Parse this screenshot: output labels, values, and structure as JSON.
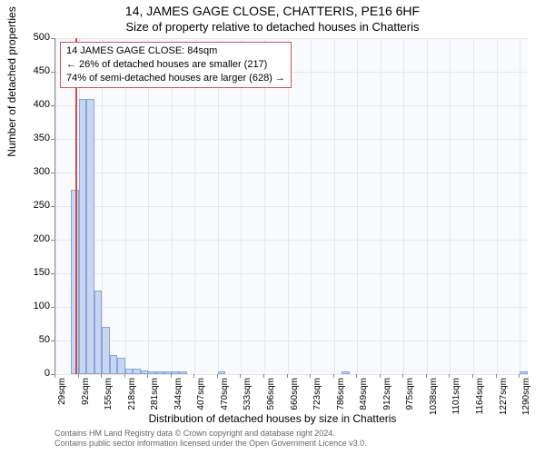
{
  "title_main": "14, JAMES GAGE CLOSE, CHATTERIS, PE16 6HF",
  "title_sub": "Size of property relative to detached houses in Chatteris",
  "y_axis_label": "Number of detached properties",
  "x_axis_label": "Distribution of detached houses by size in Chatteris",
  "footer_line1": "Contains HM Land Registry data © Crown copyright and database right 2024.",
  "footer_line2": "Contains public sector information licensed under the Open Government Licence v3.0.",
  "info_box": {
    "line1": "14 JAMES GAGE CLOSE: 84sqm",
    "line2": "← 26% of detached houses are smaller (217)",
    "line3": "74% of semi-detached houses are larger (628) →"
  },
  "chart": {
    "type": "histogram",
    "plot_background": "#f8fafd",
    "grid_color": "#e8e8ec",
    "bar_fill": "#c7d6f2",
    "bar_border": "#8aa5d6",
    "marker_color": "#d04a4a",
    "info_box_border": "#cc5555",
    "ylim": [
      0,
      500
    ],
    "y_ticks": [
      0,
      50,
      100,
      150,
      200,
      250,
      300,
      350,
      400,
      450,
      500
    ],
    "xlim": [
      29,
      1311
    ],
    "x_tick_step": 63,
    "x_tick_labels": [
      "29sqm",
      "92sqm",
      "155sqm",
      "218sqm",
      "281sqm",
      "344sqm",
      "407sqm",
      "470sqm",
      "533sqm",
      "596sqm",
      "660sqm",
      "723sqm",
      "786sqm",
      "849sqm",
      "912sqm",
      "975sqm",
      "1038sqm",
      "1101sqm",
      "1164sqm",
      "1227sqm",
      "1290sqm"
    ],
    "bin_width": 21,
    "bar_values": [
      0,
      0,
      275,
      410,
      410,
      125,
      70,
      29,
      24,
      8,
      8,
      6,
      4,
      4,
      4,
      4,
      4,
      0,
      0,
      0,
      0,
      4,
      0,
      0,
      0,
      0,
      0,
      0,
      0,
      0,
      0,
      0,
      0,
      0,
      0,
      0,
      0,
      4,
      0,
      0,
      0,
      0,
      0,
      0,
      0,
      0,
      0,
      0,
      0,
      0,
      0,
      0,
      0,
      0,
      0,
      0,
      0,
      0,
      0,
      0,
      4
    ],
    "marker_value": 84,
    "title_fontsize": 14,
    "subtitle_fontsize": 13,
    "axis_label_fontsize": 12,
    "tick_fontsize": 11,
    "x_tick_fontsize": 10,
    "info_fontsize": 11,
    "footer_fontsize": 9
  }
}
